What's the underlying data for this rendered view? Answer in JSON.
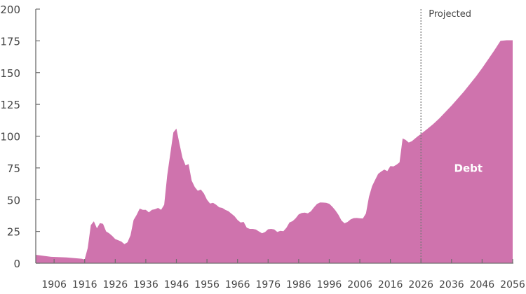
{
  "chart_data": {
    "type": "area",
    "title": "",
    "xlabel": "",
    "ylabel": "",
    "xlim": [
      1900,
      2056
    ],
    "ylim": [
      0,
      200
    ],
    "yticks": [
      0,
      25,
      50,
      75,
      100,
      125,
      150,
      175,
      200
    ],
    "xticks": [
      1906,
      1916,
      1926,
      1936,
      1946,
      1956,
      1966,
      1976,
      1986,
      1996,
      2006,
      2016,
      2026,
      2036,
      2046,
      2056
    ],
    "grid": false,
    "fill_color": "#cf73ad",
    "axis_color": "#6d6d6d",
    "series": [
      {
        "name": "Debt",
        "x": [
          1900,
          1905,
          1910,
          1915,
          1916,
          1917,
          1918,
          1919,
          1920,
          1921,
          1922,
          1923,
          1924,
          1925,
          1926,
          1927,
          1928,
          1929,
          1930,
          1931,
          1932,
          1933,
          1934,
          1935,
          1936,
          1937,
          1938,
          1939,
          1940,
          1941,
          1942,
          1943,
          1944,
          1945,
          1946,
          1947,
          1948,
          1949,
          1950,
          1951,
          1952,
          1953,
          1954,
          1955,
          1956,
          1957,
          1958,
          1959,
          1960,
          1961,
          1962,
          1963,
          1964,
          1965,
          1966,
          1967,
          1968,
          1969,
          1970,
          1971,
          1972,
          1973,
          1974,
          1975,
          1976,
          1977,
          1978,
          1979,
          1980,
          1981,
          1982,
          1983,
          1984,
          1985,
          1986,
          1987,
          1988,
          1989,
          1990,
          1991,
          1992,
          1993,
          1994,
          1995,
          1996,
          1997,
          1998,
          1999,
          2000,
          2001,
          2002,
          2003,
          2004,
          2005,
          2006,
          2007,
          2008,
          2009,
          2010,
          2011,
          2012,
          2013,
          2014,
          2015,
          2016,
          2017,
          2018,
          2019,
          2020,
          2021,
          2022,
          2023,
          2024,
          2025,
          2026,
          2028,
          2030,
          2032,
          2034,
          2036,
          2038,
          2040,
          2042,
          2044,
          2046,
          2048,
          2050,
          2052,
          2054,
          2056
        ],
        "values": [
          6.6,
          5.0,
          4.5,
          3.5,
          3.0,
          12,
          30,
          33,
          27.5,
          31.5,
          31,
          25,
          23.5,
          21.5,
          19,
          18,
          17,
          15,
          16.5,
          22,
          34,
          38,
          43,
          42,
          42,
          40,
          42,
          42.5,
          43.5,
          42,
          46,
          69,
          86,
          103,
          106,
          94,
          83,
          77,
          78,
          65,
          60,
          57,
          58,
          55,
          50,
          47,
          47.5,
          46,
          44,
          43.5,
          42,
          41,
          39,
          37,
          34,
          32,
          32.5,
          28,
          27,
          27,
          26.5,
          25,
          23.5,
          24.5,
          26.7,
          27,
          26.6,
          24.6,
          25.5,
          25.2,
          27.9,
          32.1,
          33.1,
          35.3,
          38.4,
          39.5,
          39.8,
          39.3,
          40.8,
          44,
          46.6,
          47.8,
          47.7,
          47.5,
          46.8,
          44.5,
          41.6,
          38.2,
          33.6,
          31.4,
          32.5,
          34.5,
          35.5,
          35.6,
          35.3,
          35.2,
          39.2,
          52.3,
          60.6,
          65.5,
          70.3,
          72.2,
          73.7,
          72.5,
          76.4,
          76.2,
          77.6,
          79.4,
          98.2,
          97,
          95,
          96,
          98,
          100,
          101.7,
          105.5,
          109.5,
          114,
          119,
          124,
          129.5,
          135,
          141,
          147,
          153.5,
          160.5,
          167.5,
          175,
          175.5,
          175.5
        ]
      }
    ],
    "annotations": {
      "projected_start_year": 2026,
      "projected_label": "Projected",
      "series_label": "Debt"
    }
  }
}
